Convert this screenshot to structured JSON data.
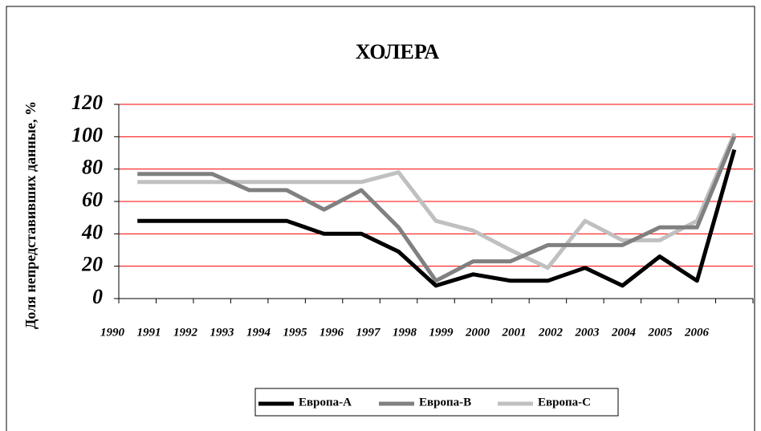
{
  "chart_data": {
    "type": "line",
    "title": "ХОЛЕРА",
    "y_label": "Доля непредставивших данные, %",
    "categories": [
      "1990",
      "1991",
      "1992",
      "1993",
      "1994",
      "1995",
      "1996",
      "1997",
      "1998",
      "1999",
      "2000",
      "2001",
      "2002",
      "2003",
      "2004",
      "2005",
      "2006"
    ],
    "series": [
      {
        "name": "Европа-А",
        "color": "#000000",
        "values": [
          48,
          48,
          48,
          48,
          48,
          40,
          40,
          29,
          8,
          15,
          11,
          11,
          19,
          8,
          26,
          11,
          92
        ]
      },
      {
        "name": "Европа-В",
        "color": "#808080",
        "values": [
          77,
          77,
          77,
          67,
          67,
          55,
          67,
          44,
          11,
          23,
          23,
          33,
          33,
          33,
          44,
          44,
          100
        ]
      },
      {
        "name": "Европа-С",
        "color": "#c0c0c0",
        "values": [
          72,
          72,
          72,
          72,
          72,
          72,
          72,
          78,
          48,
          42,
          30,
          19,
          48,
          36,
          36,
          48,
          102
        ]
      }
    ],
    "ylim": [
      0,
      120
    ],
    "yticks": [
      0,
      20,
      40,
      60,
      80,
      100,
      120
    ],
    "grid": true,
    "grid_color": "#ff0000",
    "legend": "bottom"
  }
}
